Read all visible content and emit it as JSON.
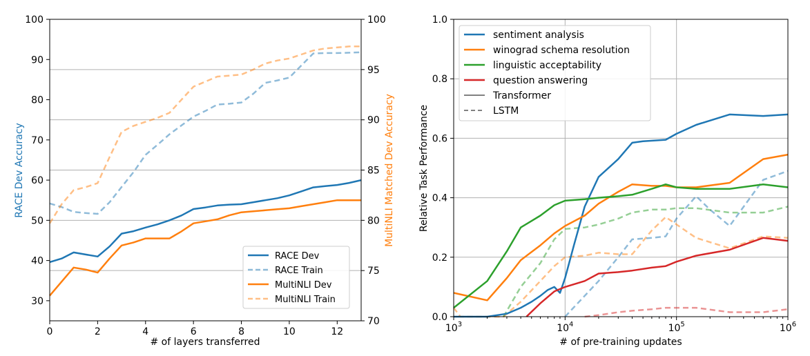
{
  "colors": {
    "blue": "#1f77b4",
    "orange": "#ff7f0e",
    "green": "#2ca02c",
    "red": "#d62728",
    "grid": "#b0b0b0",
    "axis": "#000000"
  },
  "chart_data": [
    {
      "type": "line",
      "xlabel": "# of layers transferred",
      "ylabel": "RACE Dev Accuracy",
      "y2label": "MultiNLI Matched Dev Accuracy",
      "xlim": [
        0,
        13
      ],
      "ylim": [
        25,
        100
      ],
      "y2lim": [
        70,
        100
      ],
      "xticks": [
        0,
        2,
        4,
        6,
        8,
        10,
        12
      ],
      "yticks": [
        30,
        40,
        50,
        60,
        70,
        80,
        90,
        100
      ],
      "y2ticks": [
        70,
        75,
        80,
        85,
        90,
        95,
        100
      ],
      "grid": "horizontal lines on right axis ticks",
      "legend": "bottom-right",
      "series": [
        {
          "name": "RACE Dev",
          "axis": "left",
          "color": "blue",
          "style": "solid",
          "x": [
            0,
            0.5,
            1,
            1.5,
            2,
            2.5,
            3,
            3.5,
            4,
            4.5,
            5,
            5.5,
            6,
            6.5,
            7,
            7.5,
            8,
            8.5,
            9,
            9.5,
            10,
            10.5,
            11,
            11.5,
            12,
            12.5,
            13
          ],
          "values": [
            39.6,
            40.5,
            42.0,
            41.5,
            41.0,
            43.5,
            46.7,
            47.3,
            48.2,
            49.0,
            50.0,
            51.2,
            52.8,
            53.2,
            53.7,
            53.9,
            54.0,
            54.5,
            55.0,
            55.5,
            56.2,
            57.2,
            58.2,
            58.5,
            58.8,
            59.3,
            60.0
          ]
        },
        {
          "name": "RACE Train",
          "axis": "left",
          "color": "blue",
          "style": "dashed",
          "x": [
            0,
            0.5,
            1,
            1.5,
            2,
            2.5,
            3,
            3.5,
            4,
            4.5,
            5,
            5.5,
            6,
            6.5,
            7,
            7.5,
            8,
            8.5,
            9,
            9.5,
            10,
            10.5,
            11,
            11.5,
            12,
            12.5,
            13
          ],
          "values": [
            54.2,
            53.3,
            52.1,
            51.8,
            51.6,
            54.5,
            58.3,
            62.0,
            66.3,
            68.8,
            71.4,
            73.6,
            75.8,
            77.2,
            78.8,
            79.0,
            79.3,
            81.5,
            84.2,
            84.8,
            85.5,
            88.5,
            91.5,
            91.6,
            91.6,
            91.7,
            91.8
          ]
        },
        {
          "name": "MultiNLI Dev",
          "axis": "right",
          "color": "orange",
          "style": "solid",
          "x": [
            0,
            0.5,
            1,
            1.5,
            2,
            2.5,
            3,
            3.5,
            4,
            4.5,
            5,
            5.5,
            6,
            6.5,
            7,
            7.5,
            8,
            8.5,
            9,
            9.5,
            10,
            10.5,
            11,
            11.5,
            12,
            12.5,
            13
          ],
          "values": [
            72.5,
            73.9,
            75.3,
            75.1,
            74.8,
            76.2,
            77.5,
            77.8,
            78.2,
            78.2,
            78.2,
            78.9,
            79.7,
            79.9,
            80.1,
            80.5,
            80.8,
            80.9,
            81.0,
            81.1,
            81.2,
            81.4,
            81.6,
            81.8,
            82.0,
            82.0,
            82.0
          ]
        },
        {
          "name": "MultiNLI Train",
          "axis": "right",
          "color": "orange",
          "style": "dashed",
          "x": [
            0,
            0.5,
            1,
            1.5,
            2,
            2.5,
            3,
            3.5,
            4,
            4.5,
            5,
            5.5,
            6,
            6.5,
            7,
            7.5,
            8,
            8.5,
            9,
            9.5,
            10,
            10.5,
            11,
            11.5,
            12,
            12.5,
            13
          ],
          "values": [
            79.7,
            81.6,
            83.0,
            83.3,
            83.7,
            86.3,
            88.8,
            89.4,
            89.8,
            90.2,
            90.7,
            92.0,
            93.3,
            93.8,
            94.3,
            94.4,
            94.5,
            95.0,
            95.6,
            95.9,
            96.1,
            96.5,
            96.9,
            97.1,
            97.2,
            97.3,
            97.3
          ]
        }
      ]
    },
    {
      "type": "line",
      "xlabel": "# of pre-training updates",
      "ylabel": "Relative Task Performance",
      "xscale": "log",
      "xlim": [
        1000,
        1000000
      ],
      "ylim": [
        0.0,
        1.0
      ],
      "xtick_labels": [
        "10^3",
        "10^4",
        "10^5",
        "10^6"
      ],
      "xticks": [
        1000,
        10000,
        100000,
        1000000
      ],
      "yticks": [
        0.0,
        0.2,
        0.4,
        0.6,
        0.8,
        1.0
      ],
      "ytick_labels": [
        "0.0",
        "0.2",
        "0.4",
        "0.6",
        "0.8",
        "1.0"
      ],
      "grid": true,
      "legend": "top-left",
      "legend_entries": [
        {
          "label": "sentiment analysis",
          "color": "blue",
          "style": "solid"
        },
        {
          "label": "winograd schema resolution",
          "color": "orange",
          "style": "solid"
        },
        {
          "label": "linguistic acceptability",
          "color": "green",
          "style": "solid"
        },
        {
          "label": "question answering",
          "color": "red",
          "style": "solid"
        },
        {
          "label": "Transformer",
          "color": "#000000",
          "style": "thin-solid"
        },
        {
          "label": "LSTM",
          "color": "#808080",
          "style": "dashed"
        }
      ],
      "series": [
        {
          "name": "sentiment analysis",
          "model": "Transformer",
          "color": "blue",
          "style": "solid",
          "x": [
            1000,
            2000,
            3000,
            4000,
            5000,
            6000,
            7000,
            8000,
            9000,
            10000,
            12000,
            15000,
            20000,
            30000,
            40000,
            50000,
            80000,
            100000,
            150000,
            300000,
            600000,
            1000000
          ],
          "values": [
            0.0,
            0.0,
            0.01,
            0.03,
            0.05,
            0.07,
            0.09,
            0.1,
            0.08,
            0.13,
            0.24,
            0.37,
            0.47,
            0.53,
            0.585,
            0.59,
            0.595,
            0.615,
            0.645,
            0.68,
            0.675,
            0.68
          ]
        },
        {
          "name": "winograd schema resolution",
          "model": "Transformer",
          "color": "orange",
          "style": "solid",
          "x": [
            1000,
            2000,
            3000,
            4000,
            6000,
            8000,
            10000,
            15000,
            20000,
            30000,
            40000,
            60000,
            80000,
            100000,
            150000,
            300000,
            600000,
            1000000
          ],
          "values": [
            0.08,
            0.055,
            0.13,
            0.19,
            0.24,
            0.28,
            0.305,
            0.34,
            0.38,
            0.42,
            0.445,
            0.44,
            0.44,
            0.435,
            0.435,
            0.45,
            0.53,
            0.545
          ]
        },
        {
          "name": "linguistic acceptability",
          "model": "Transformer",
          "color": "green",
          "style": "solid",
          "x": [
            1000,
            2000,
            3000,
            4000,
            6000,
            8000,
            10000,
            15000,
            20000,
            30000,
            40000,
            60000,
            80000,
            100000,
            150000,
            300000,
            600000,
            1000000
          ],
          "values": [
            0.03,
            0.12,
            0.22,
            0.3,
            0.34,
            0.375,
            0.39,
            0.395,
            0.4,
            0.405,
            0.41,
            0.43,
            0.445,
            0.435,
            0.43,
            0.43,
            0.445,
            0.435
          ]
        },
        {
          "name": "question answering",
          "model": "Transformer",
          "color": "red",
          "style": "solid",
          "x": [
            4500,
            6000,
            8000,
            10000,
            15000,
            20000,
            30000,
            40000,
            60000,
            80000,
            100000,
            150000,
            300000,
            600000,
            1000000
          ],
          "values": [
            0.0,
            0.045,
            0.085,
            0.1,
            0.12,
            0.145,
            0.15,
            0.155,
            0.165,
            0.17,
            0.185,
            0.205,
            0.225,
            0.265,
            0.255
          ]
        },
        {
          "name": "sentiment analysis",
          "model": "LSTM",
          "color": "blue",
          "style": "dashed",
          "x": [
            10000,
            15000,
            20000,
            30000,
            40000,
            60000,
            80000,
            100000,
            150000,
            200000,
            300000,
            600000,
            1000000
          ],
          "values": [
            0.0,
            0.07,
            0.12,
            0.2,
            0.26,
            0.265,
            0.27,
            0.33,
            0.405,
            0.36,
            0.305,
            0.46,
            0.49
          ]
        },
        {
          "name": "winograd schema resolution",
          "model": "LSTM",
          "color": "orange",
          "style": "dashed",
          "x": [
            1000,
            1150,
            2800,
            4000,
            6000,
            8000,
            10000,
            15000,
            20000,
            30000,
            40000,
            60000,
            80000,
            100000,
            150000,
            300000,
            600000,
            1000000
          ],
          "values": [
            0.03,
            0.0,
            0.0,
            0.05,
            0.12,
            0.17,
            0.2,
            0.205,
            0.215,
            0.21,
            0.21,
            0.29,
            0.335,
            0.31,
            0.265,
            0.23,
            0.27,
            0.265
          ]
        },
        {
          "name": "linguistic acceptability",
          "model": "LSTM",
          "color": "green",
          "style": "dashed",
          "x": [
            2800,
            4000,
            6000,
            8000,
            10000,
            15000,
            20000,
            30000,
            40000,
            60000,
            80000,
            100000,
            150000,
            300000,
            600000,
            1000000
          ],
          "values": [
            0.0,
            0.1,
            0.18,
            0.26,
            0.295,
            0.3,
            0.31,
            0.33,
            0.35,
            0.36,
            0.36,
            0.365,
            0.365,
            0.35,
            0.35,
            0.37
          ]
        },
        {
          "name": "question answering",
          "model": "LSTM",
          "color": "red",
          "style": "dashed",
          "x": [
            15000,
            20000,
            30000,
            40000,
            60000,
            80000,
            100000,
            150000,
            300000,
            600000,
            1000000
          ],
          "values": [
            0.0,
            0.005,
            0.015,
            0.02,
            0.025,
            0.03,
            0.03,
            0.03,
            0.015,
            0.015,
            0.025
          ]
        }
      ]
    }
  ]
}
